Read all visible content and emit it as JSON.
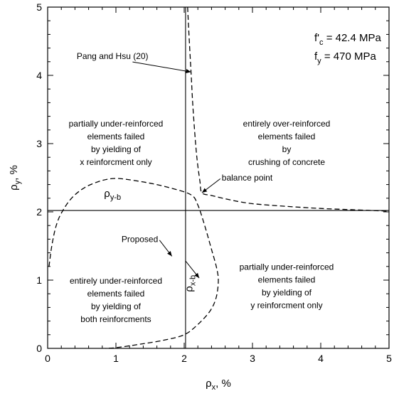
{
  "chart_data": {
    "type": "line",
    "xlabel": {
      "sym": "ρ",
      "sub": "x",
      "unit": ", %"
    },
    "ylabel": {
      "sym": "ρ",
      "sub": "y",
      "unit": ", %"
    },
    "xlim": [
      0,
      5
    ],
    "ylim": [
      0,
      5
    ],
    "x_ticks": [
      "0",
      "1",
      "2",
      "3",
      "4",
      "5"
    ],
    "y_ticks": [
      "0",
      "1",
      "2",
      "3",
      "4",
      "5"
    ],
    "grid": false,
    "reference_lines": [
      {
        "orientation": "vertical",
        "value": 2.02
      },
      {
        "orientation": "horizontal",
        "value": 2.02
      }
    ],
    "series": [
      {
        "style": "dashed",
        "points": [
          [
            2.05,
            5.0
          ],
          [
            2.07,
            4.6
          ],
          [
            2.1,
            4.05
          ],
          [
            2.13,
            3.5
          ],
          [
            2.18,
            2.85
          ],
          [
            2.23,
            2.45
          ],
          [
            2.26,
            2.28
          ],
          [
            2.4,
            2.24
          ],
          [
            2.7,
            2.17
          ],
          [
            3.0,
            2.12
          ],
          [
            3.5,
            2.08
          ],
          [
            4.0,
            2.05
          ],
          [
            4.5,
            2.03
          ],
          [
            5.0,
            2.01
          ]
        ]
      },
      {
        "style": "dashed",
        "points": [
          [
            0.02,
            1.2
          ],
          [
            0.06,
            1.5
          ],
          [
            0.12,
            1.78
          ],
          [
            0.2,
            1.98
          ],
          [
            0.35,
            2.2
          ],
          [
            0.55,
            2.36
          ],
          [
            0.8,
            2.46
          ],
          [
            1.0,
            2.49
          ],
          [
            1.2,
            2.47
          ],
          [
            1.5,
            2.42
          ],
          [
            1.8,
            2.35
          ],
          [
            2.1,
            2.25
          ],
          [
            2.2,
            2.1
          ],
          [
            2.3,
            1.8
          ],
          [
            2.4,
            1.45
          ],
          [
            2.47,
            1.2
          ],
          [
            2.5,
            1.0
          ],
          [
            2.47,
            0.75
          ],
          [
            2.38,
            0.55
          ],
          [
            2.2,
            0.35
          ],
          [
            2.0,
            0.2
          ],
          [
            1.7,
            0.12
          ],
          [
            1.35,
            0.06
          ],
          [
            1.0,
            0.01
          ],
          [
            0.85,
            0.0
          ]
        ]
      }
    ],
    "annotations": [
      {
        "key": "pang",
        "text": "Pang and Hsu (20)",
        "x": 0.95,
        "y": 4.28,
        "anchor": "middle",
        "arrow_to": [
          2.1,
          4.05
        ]
      },
      {
        "key": "balance",
        "text": "balance point",
        "x": 2.55,
        "y": 2.5,
        "anchor": "start",
        "arrow_to": [
          2.26,
          2.28
        ]
      },
      {
        "key": "proposed",
        "text": "Proposed",
        "x": 1.35,
        "y": 1.6,
        "anchor": "middle",
        "arrow_to": [
          1.82,
          1.35
        ]
      },
      {
        "key": "xb-arrow",
        "text": "",
        "x": 2.02,
        "y": 1.28,
        "anchor": "middle",
        "arrow_to": [
          2.22,
          1.03
        ]
      }
    ],
    "region_labels": [
      {
        "key": "tl",
        "x": 1.0,
        "y": 3.25,
        "lines": [
          "partially under-reinforced",
          "elements failed",
          "by yielding of",
          "x reinforcment only"
        ]
      },
      {
        "key": "tr",
        "x": 3.5,
        "y": 3.25,
        "lines": [
          "entirely over-reinforced",
          "elements failed",
          "by",
          "crushing of concrete"
        ]
      },
      {
        "key": "bl",
        "x": 1.0,
        "y": 0.95,
        "lines": [
          "entirely under-reinforced",
          "elements failed",
          "by yielding of",
          "both reinforcments"
        ]
      },
      {
        "key": "br",
        "x": 3.5,
        "y": 1.15,
        "lines": [
          "partially under-reinforced",
          "elements failed",
          "by yielding of",
          "y reinforcment only"
        ]
      }
    ],
    "rho_labels": [
      {
        "key": "rho-yb",
        "sym": "ρ",
        "sub": "y-b",
        "x": 0.95,
        "y": 2.22,
        "rotate": 0
      },
      {
        "key": "rho-xb",
        "sym": "ρ",
        "sub": "x-b",
        "x": 2.12,
        "y": 0.95,
        "rotate": -90
      }
    ],
    "params": [
      {
        "key": "fc",
        "base": "f'",
        "sub": "c",
        "value": " = 42.4 MPa"
      },
      {
        "key": "fy",
        "base": "f",
        "sub": "y",
        "value": " = 470 MPa"
      }
    ]
  }
}
